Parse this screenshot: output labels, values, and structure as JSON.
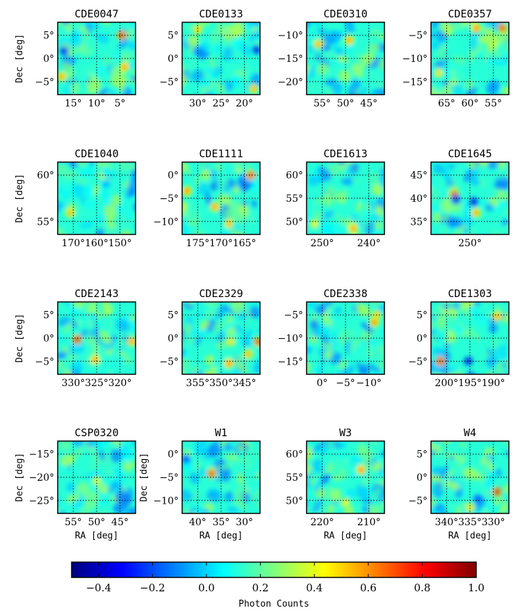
{
  "chart_data": {
    "type": "heatmap",
    "colorbar": {
      "label": "Photon Counts",
      "range": [
        -0.5,
        1.0
      ],
      "tick_labels": [
        "−0.4",
        "−0.2",
        "0.0",
        "0.2",
        "0.4",
        "0.6",
        "0.8",
        "1.0"
      ],
      "tick_values": [
        -0.4,
        -0.2,
        0.0,
        0.2,
        0.4,
        0.6,
        0.8,
        1.0
      ],
      "colormap": [
        "#00007f",
        "#0000ff",
        "#007fff",
        "#00ffff",
        "#7fff7f",
        "#ffff00",
        "#ff7f00",
        "#ff0000",
        "#7f0000"
      ]
    },
    "ylabel": "Dec [deg]",
    "xlabel": "RA [deg]",
    "panels": [
      {
        "title": "CDE0047",
        "xticks": [
          "15°",
          "10°",
          "5°"
        ],
        "yticks": [
          "5°",
          "0°",
          "−5°"
        ],
        "ylabel": "Dec [deg]",
        "hot_spots": [
          {
            "u": 0.82,
            "v": 0.18,
            "val": 0.95
          },
          {
            "u": 0.86,
            "v": 0.62,
            "val": 0.7
          },
          {
            "u": 0.05,
            "v": 0.75,
            "val": 0.65
          },
          {
            "u": 0.08,
            "v": 0.4,
            "val": -0.4
          }
        ]
      },
      {
        "title": "CDE0133",
        "xticks": [
          "30°",
          "25°",
          "20°"
        ],
        "yticks": [
          "5°",
          "0°",
          "−5°"
        ],
        "hot_spots": [
          {
            "u": 0.96,
            "v": 0.38,
            "val": -0.45
          },
          {
            "u": 0.2,
            "v": 0.1,
            "val": 0.55
          },
          {
            "u": 0.92,
            "v": 0.92,
            "val": 0.6
          }
        ]
      },
      {
        "title": "CDE0310",
        "xticks": [
          "55°",
          "50°",
          "45°"
        ],
        "yticks": [
          "−10°",
          "−15°",
          "−20°"
        ],
        "hot_spots": [
          {
            "u": 0.55,
            "v": 0.25,
            "val": 0.7
          },
          {
            "u": 0.15,
            "v": 0.3,
            "val": 0.6
          }
        ]
      },
      {
        "title": "CDE0357",
        "xticks": [
          "65°",
          "60°",
          "55°"
        ],
        "yticks": [
          "−5°",
          "−10°",
          "−15°"
        ],
        "hot_spots": [
          {
            "u": 0.92,
            "v": 0.08,
            "val": 0.9
          },
          {
            "u": 0.58,
            "v": 0.08,
            "val": 0.75
          },
          {
            "u": 0.1,
            "v": 0.7,
            "val": 0.5
          }
        ]
      },
      {
        "title": "CDE1040",
        "xticks": [
          "170°",
          "160°",
          "150°"
        ],
        "yticks": [
          "60°",
          "55°"
        ],
        "ylabel": "Dec [deg]",
        "hot_spots": [
          {
            "u": 0.16,
            "v": 0.7,
            "val": 0.6
          },
          {
            "u": 0.62,
            "v": 0.3,
            "val": -0.1
          }
        ]
      },
      {
        "title": "CDE1111",
        "xticks": [
          "175°",
          "170°",
          "165°"
        ],
        "yticks": [
          "0°",
          "−5°",
          "−10°"
        ],
        "hot_spots": [
          {
            "u": 0.88,
            "v": 0.18,
            "val": 0.9
          },
          {
            "u": 0.06,
            "v": 0.4,
            "val": 0.75
          },
          {
            "u": 0.42,
            "v": 0.62,
            "val": 0.7
          },
          {
            "u": 0.6,
            "v": 0.85,
            "val": 0.6
          }
        ]
      },
      {
        "title": "CDE1613",
        "xticks": [
          "250°",
          "240°"
        ],
        "yticks": [
          "60°",
          "55°",
          "50°"
        ],
        "hot_spots": [
          {
            "u": 0.6,
            "v": 0.92,
            "val": 0.7
          },
          {
            "u": 0.1,
            "v": 0.85,
            "val": 0.45
          }
        ]
      },
      {
        "title": "CDE1645",
        "xticks": [
          "250°"
        ],
        "yticks": [
          "45°",
          "40°",
          "35°"
        ],
        "hot_spots": [
          {
            "u": 0.3,
            "v": 0.45,
            "val": 0.95
          },
          {
            "u": 0.55,
            "v": 0.55,
            "val": -0.45
          },
          {
            "u": 0.32,
            "v": 0.52,
            "val": -0.4
          },
          {
            "u": 0.58,
            "v": 0.7,
            "val": 0.65
          }
        ]
      },
      {
        "title": "CDE2143",
        "xticks": [
          "330°",
          "325°",
          "320°"
        ],
        "yticks": [
          "5°",
          "0°",
          "−5°"
        ],
        "ylabel": "Dec [deg]",
        "hot_spots": [
          {
            "u": 0.25,
            "v": 0.52,
            "val": 1.0
          },
          {
            "u": 0.48,
            "v": 0.8,
            "val": 0.7
          },
          {
            "u": 0.96,
            "v": 0.55,
            "val": 0.7
          }
        ]
      },
      {
        "title": "CDE2329",
        "xticks": [
          "355°",
          "350°",
          "345°"
        ],
        "yticks": [
          "5°",
          "0°",
          "−5°"
        ],
        "hot_spots": [
          {
            "u": 0.98,
            "v": 0.55,
            "val": 0.95
          },
          {
            "u": 0.62,
            "v": 0.55,
            "val": 0.5
          },
          {
            "u": 0.6,
            "v": 0.85,
            "val": 0.75
          },
          {
            "u": 0.85,
            "v": 0.72,
            "val": 0.6
          }
        ]
      },
      {
        "title": "CDE2338",
        "xticks": [
          "0°",
          "−5°",
          "−10°"
        ],
        "yticks": [
          "−5°",
          "−10°",
          "−15°"
        ],
        "hot_spots": [
          {
            "u": 0.87,
            "v": 0.28,
            "val": 0.75
          },
          {
            "u": 0.9,
            "v": 0.18,
            "val": 0.55
          }
        ]
      },
      {
        "title": "CDE1303",
        "xticks": [
          "200°",
          "195°",
          "190°"
        ],
        "yticks": [
          "5°",
          "0°",
          "−5°"
        ],
        "hot_spots": [
          {
            "u": 0.12,
            "v": 0.82,
            "val": 0.95
          },
          {
            "u": 0.48,
            "v": 0.82,
            "val": -0.45
          },
          {
            "u": 0.85,
            "v": 0.2,
            "val": 0.65
          }
        ]
      },
      {
        "title": "CSP0320",
        "xticks": [
          "55°",
          "50°",
          "45°"
        ],
        "yticks": [
          "−15°",
          "−20°",
          "−25°"
        ],
        "ylabel": "Dec [deg]",
        "xlabel": "RA [deg]",
        "hot_spots": [
          {
            "u": 0.5,
            "v": 0.55,
            "val": 0.4
          }
        ]
      },
      {
        "title": "W1",
        "xticks": [
          "40°",
          "35°",
          "30°"
        ],
        "yticks": [
          "0°",
          "−5°",
          "−10°"
        ],
        "ylabel": "Dec [deg]",
        "xlabel": "RA [deg]",
        "hot_spots": [
          {
            "u": 0.38,
            "v": 0.45,
            "val": 0.9
          },
          {
            "u": 0.05,
            "v": 0.25,
            "val": -0.3
          }
        ]
      },
      {
        "title": "W3",
        "xticks": [
          "220°",
          "210°"
        ],
        "yticks": [
          "60°",
          "55°",
          "50°"
        ],
        "xlabel": "RA [deg]",
        "hot_spots": [
          {
            "u": 0.7,
            "v": 0.4,
            "val": 0.75
          },
          {
            "u": 0.5,
            "v": 0.85,
            "val": 0.45
          }
        ]
      },
      {
        "title": "W4",
        "xticks": [
          "340°",
          "335°",
          "330°"
        ],
        "yticks": [
          "5°",
          "0°",
          "−5°"
        ],
        "xlabel": "RA [deg]",
        "hot_spots": [
          {
            "u": 0.85,
            "v": 0.7,
            "val": 1.0
          },
          {
            "u": 0.6,
            "v": 0.8,
            "val": -0.3
          },
          {
            "u": 0.5,
            "v": 0.92,
            "val": 0.5
          }
        ]
      }
    ]
  }
}
